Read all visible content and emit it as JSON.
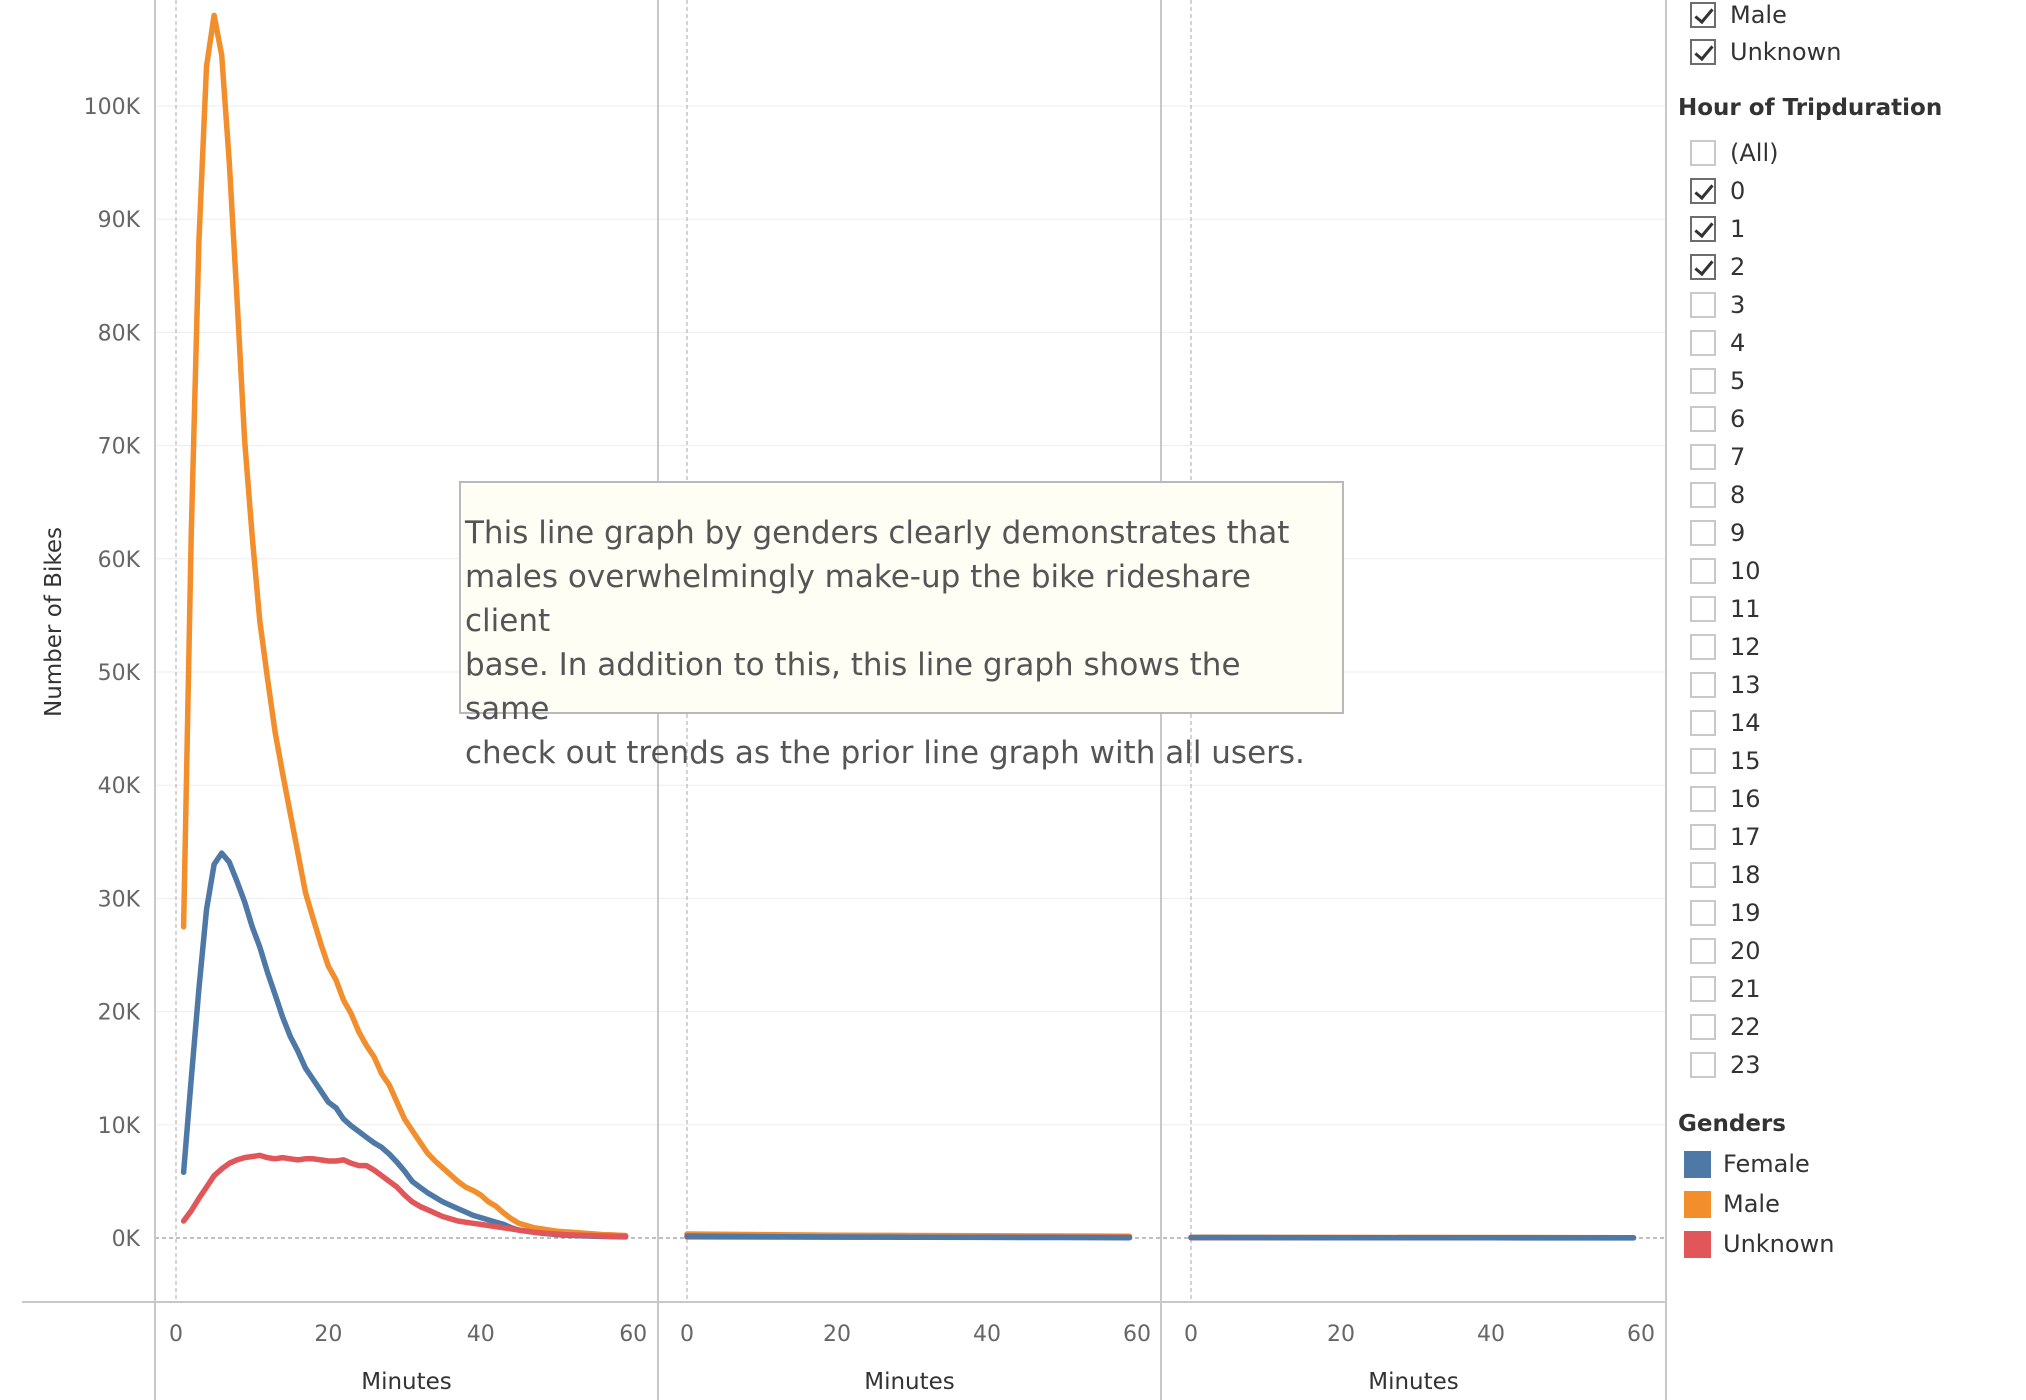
{
  "chart_data": {
    "type": "line",
    "ylabel": "Number of Bikes",
    "xlabel": "Minutes",
    "y_ticks": [
      0,
      10000,
      20000,
      30000,
      40000,
      50000,
      60000,
      70000,
      80000,
      90000,
      100000
    ],
    "y_tick_labels": [
      "0K",
      "10K",
      "20K",
      "30K",
      "40K",
      "50K",
      "60K",
      "70K",
      "80K",
      "90K",
      "100K"
    ],
    "x_ticks": [
      0,
      20,
      40,
      60
    ],
    "x_tick_labels": [
      "0",
      "20",
      "40",
      "60"
    ],
    "panels": [
      {
        "xlabel": "Minutes",
        "series": [
          {
            "name": "Male",
            "color": "#f28e2b",
            "x": [
              1,
              2,
              3,
              4,
              5,
              6,
              7,
              8,
              9,
              10,
              11,
              12,
              13,
              14,
              15,
              16,
              17,
              18,
              19,
              20,
              21,
              22,
              23,
              24,
              25,
              26,
              27,
              28,
              29,
              30,
              31,
              32,
              33,
              34,
              35,
              36,
              37,
              38,
              39,
              40,
              41,
              42,
              43,
              44,
              45,
              46,
              47,
              48,
              49,
              50,
              51,
              52,
              53,
              54,
              55,
              56,
              57,
              58,
              59
            ],
            "y": [
              27500,
              62000,
              88000,
              103500,
              108000,
              104500,
              95000,
              83000,
              70500,
              62000,
              54500,
              49500,
              44700,
              41000,
              37500,
              34000,
              30500,
              28200,
              26000,
              24000,
              22800,
              21000,
              19800,
              18200,
              17000,
              16000,
              14500,
              13500,
              12000,
              10500,
              9500,
              8500,
              7500,
              6800,
              6200,
              5600,
              5000,
              4500,
              4200,
              3800,
              3200,
              2800,
              2200,
              1700,
              1300,
              1100,
              900,
              800,
              700,
              600,
              550,
              500,
              450,
              400,
              350,
              300,
              280,
              250,
              220
            ]
          },
          {
            "name": "Female",
            "color": "#4e79a7",
            "x": [
              1,
              2,
              3,
              4,
              5,
              6,
              7,
              8,
              9,
              10,
              11,
              12,
              13,
              14,
              15,
              16,
              17,
              18,
              19,
              20,
              21,
              22,
              23,
              24,
              25,
              26,
              27,
              28,
              29,
              30,
              31,
              32,
              33,
              34,
              35,
              36,
              37,
              38,
              39,
              40,
              41,
              42,
              43,
              44,
              45,
              46,
              47,
              48,
              49,
              50,
              51,
              52,
              53,
              54,
              55,
              56,
              57,
              58,
              59
            ],
            "y": [
              5800,
              14000,
              22000,
              29000,
              33000,
              34000,
              33200,
              31500,
              29700,
              27500,
              25700,
              23500,
              21500,
              19500,
              17800,
              16500,
              15000,
              14000,
              13000,
              12000,
              11500,
              10500,
              9900,
              9400,
              8900,
              8400,
              8000,
              7400,
              6700,
              5900,
              5000,
              4500,
              4000,
              3600,
              3200,
              2900,
              2600,
              2300,
              2000,
              1800,
              1600,
              1400,
              1200,
              900,
              700,
              600,
              500,
              420,
              360,
              300,
              260,
              220,
              200,
              180,
              160,
              140,
              120,
              110,
              100
            ]
          },
          {
            "name": "Unknown",
            "color": "#e15759",
            "x": [
              1,
              2,
              3,
              4,
              5,
              6,
              7,
              8,
              9,
              10,
              11,
              12,
              13,
              14,
              15,
              16,
              17,
              18,
              19,
              20,
              21,
              22,
              23,
              24,
              25,
              26,
              27,
              28,
              29,
              30,
              31,
              32,
              33,
              34,
              35,
              36,
              37,
              38,
              39,
              40,
              41,
              42,
              43,
              44,
              45,
              46,
              47,
              48,
              49,
              50,
              51,
              52,
              53,
              54,
              55,
              56,
              57,
              58,
              59
            ],
            "y": [
              1500,
              2400,
              3500,
              4500,
              5500,
              6100,
              6600,
              6900,
              7100,
              7200,
              7300,
              7100,
              7000,
              7100,
              7000,
              6900,
              7000,
              7000,
              6900,
              6800,
              6800,
              6900,
              6600,
              6400,
              6400,
              6000,
              5500,
              5000,
              4500,
              3800,
              3200,
              2800,
              2500,
              2200,
              1900,
              1700,
              1500,
              1400,
              1300,
              1200,
              1100,
              1000,
              900,
              800,
              700,
              600,
              500,
              450,
              400,
              350,
              300,
              270,
              250,
              220,
              200,
              180,
              160,
              150,
              140
            ]
          }
        ]
      },
      {
        "xlabel": "Minutes",
        "series": [
          {
            "name": "Male",
            "color": "#f28e2b",
            "x": [
              0,
              10,
              20,
              30,
              40,
              50,
              59
            ],
            "y": [
              350,
              300,
              250,
              220,
              200,
              180,
              160
            ]
          },
          {
            "name": "Unknown",
            "color": "#e15759",
            "x": [
              0,
              10,
              20,
              30,
              40,
              50,
              59
            ],
            "y": [
              100,
              90,
              80,
              70,
              60,
              60,
              50
            ]
          },
          {
            "name": "Female",
            "color": "#4e79a7",
            "x": [
              0,
              10,
              20,
              30,
              40,
              50,
              59
            ],
            "y": [
              180,
              120,
              90,
              70,
              50,
              40,
              30
            ]
          }
        ]
      },
      {
        "xlabel": "Minutes",
        "series": [
          {
            "name": "Male",
            "color": "#f28e2b",
            "x": [
              0,
              20,
              40,
              59
            ],
            "y": [
              60,
              50,
              40,
              30
            ]
          },
          {
            "name": "Unknown",
            "color": "#e15759",
            "x": [
              0,
              20,
              40,
              59
            ],
            "y": [
              20,
              20,
              20,
              20
            ]
          },
          {
            "name": "Female",
            "color": "#4e79a7",
            "x": [
              0,
              20,
              40,
              59
            ],
            "y": [
              40,
              30,
              20,
              10
            ]
          }
        ]
      }
    ]
  },
  "annotation": {
    "lines": [
      "This line graph by genders clearly demonstrates that",
      "males overwhelmingly make-up the bike rideshare client",
      "base. In addition to this, this line graph shows the same",
      "check out trends as the prior line graph with all users."
    ]
  },
  "filters": {
    "gender_filter": {
      "items": [
        {
          "label": "Male",
          "checked": true
        },
        {
          "label": "Unknown",
          "checked": true
        }
      ]
    },
    "hour_filter": {
      "title": "Hour of Tripduration",
      "items": [
        {
          "label": "(All)",
          "checked": false
        },
        {
          "label": "0",
          "checked": true
        },
        {
          "label": "1",
          "checked": true
        },
        {
          "label": "2",
          "checked": true
        },
        {
          "label": "3",
          "checked": false
        },
        {
          "label": "4",
          "checked": false
        },
        {
          "label": "5",
          "checked": false
        },
        {
          "label": "6",
          "checked": false
        },
        {
          "label": "7",
          "checked": false
        },
        {
          "label": "8",
          "checked": false
        },
        {
          "label": "9",
          "checked": false
        },
        {
          "label": "10",
          "checked": false
        },
        {
          "label": "11",
          "checked": false
        },
        {
          "label": "12",
          "checked": false
        },
        {
          "label": "13",
          "checked": false
        },
        {
          "label": "14",
          "checked": false
        },
        {
          "label": "15",
          "checked": false
        },
        {
          "label": "16",
          "checked": false
        },
        {
          "label": "17",
          "checked": false
        },
        {
          "label": "18",
          "checked": false
        },
        {
          "label": "19",
          "checked": false
        },
        {
          "label": "20",
          "checked": false
        },
        {
          "label": "21",
          "checked": false
        },
        {
          "label": "22",
          "checked": false
        },
        {
          "label": "23",
          "checked": false
        }
      ]
    }
  },
  "legend": {
    "title": "Genders",
    "items": [
      {
        "label": "Female",
        "color": "#4e79a7"
      },
      {
        "label": "Male",
        "color": "#f28e2b"
      },
      {
        "label": "Unknown",
        "color": "#e15759"
      }
    ]
  }
}
